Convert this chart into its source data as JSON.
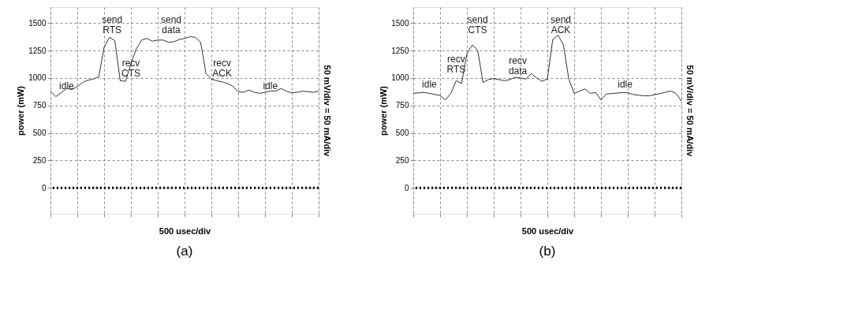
{
  "chart_data": [
    {
      "type": "line",
      "title": "(a)",
      "xlabel": "500 usec/div",
      "ylabel": "power (mW)",
      "y2label": "50 mV/div = 50 mA/div",
      "categories": [
        null,
        null,
        null,
        null,
        null,
        null,
        null,
        null,
        null,
        null,
        null,
        null,
        null,
        null,
        null,
        null,
        null,
        null,
        null,
        null,
        null,
        null,
        null,
        null,
        null,
        null,
        null,
        null,
        null,
        null,
        null,
        null,
        null,
        null,
        null,
        null,
        null,
        null,
        null,
        null,
        null,
        null,
        null,
        null,
        null,
        null,
        null,
        null,
        null,
        null,
        null
      ],
      "ylim": [
        -235,
        1645
      ],
      "yticks": [
        0,
        250,
        500,
        750,
        1000,
        1250,
        1500
      ],
      "grid": true,
      "tick_labels": "y",
      "line_style": "solid",
      "series": [
        {
          "color": "#333333",
          "values": [
            880,
            830,
            865,
            905,
            895,
            920,
            960,
            980,
            990,
            1010,
            1280,
            1370,
            1340,
            975,
            970,
            1130,
            1265,
            1345,
            1360,
            1335,
            1345,
            1345,
            1325,
            1330,
            1350,
            1360,
            1375,
            1370,
            1325,
            1040,
            990,
            975,
            965,
            950,
            925,
            875,
            870,
            890,
            870,
            860,
            870,
            880,
            880,
            905,
            880,
            865,
            870,
            880,
            875,
            870,
            880
          ]
        }
      ],
      "ref_lines": [
        {
          "axis": "y",
          "value": 0,
          "line_style": "dotted",
          "color": "#000000"
        }
      ],
      "annotations": [
        "idle",
        "send\nRTS",
        "recv\nCTS",
        "send\ndata",
        "recv\nACK",
        "idle"
      ]
    },
    {
      "type": "line",
      "title": "(b)",
      "xlabel": "500 usec/div",
      "ylabel": "power (mW)",
      "y2label": "50 mV/div = 50 mA/div",
      "categories": [
        null,
        null,
        null,
        null,
        null,
        null,
        null,
        null,
        null,
        null,
        null,
        null,
        null,
        null,
        null,
        null,
        null,
        null,
        null,
        null,
        null,
        null,
        null,
        null,
        null,
        null,
        null,
        null,
        null,
        null,
        null,
        null,
        null,
        null,
        null,
        null,
        null,
        null,
        null,
        null,
        null,
        null,
        null,
        null,
        null,
        null,
        null,
        null,
        null,
        null,
        null
      ],
      "ylim": [
        -235,
        1645
      ],
      "yticks": [
        0,
        250,
        500,
        750,
        1000,
        1250,
        1500
      ],
      "grid": true,
      "tick_labels": "y",
      "line_style": "solid",
      "series": [
        {
          "color": "#333333",
          "values": [
            860,
            865,
            868,
            860,
            850,
            840,
            800,
            860,
            975,
            950,
            1220,
            1300,
            1255,
            960,
            985,
            995,
            985,
            975,
            985,
            1005,
            1000,
            990,
            1040,
            1000,
            970,
            990,
            1350,
            1390,
            1300,
            990,
            860,
            880,
            900,
            860,
            868,
            800,
            855,
            858,
            862,
            868,
            865,
            850,
            843,
            838,
            838,
            848,
            858,
            870,
            880,
            860,
            790
          ]
        }
      ],
      "ref_lines": [
        {
          "axis": "y",
          "value": 0,
          "line_style": "dotted",
          "color": "#000000"
        }
      ],
      "annotations": [
        "idle",
        "recv\nRTS",
        "send\nCTS",
        "recv\ndata",
        "send\nACK",
        "idle"
      ]
    }
  ]
}
